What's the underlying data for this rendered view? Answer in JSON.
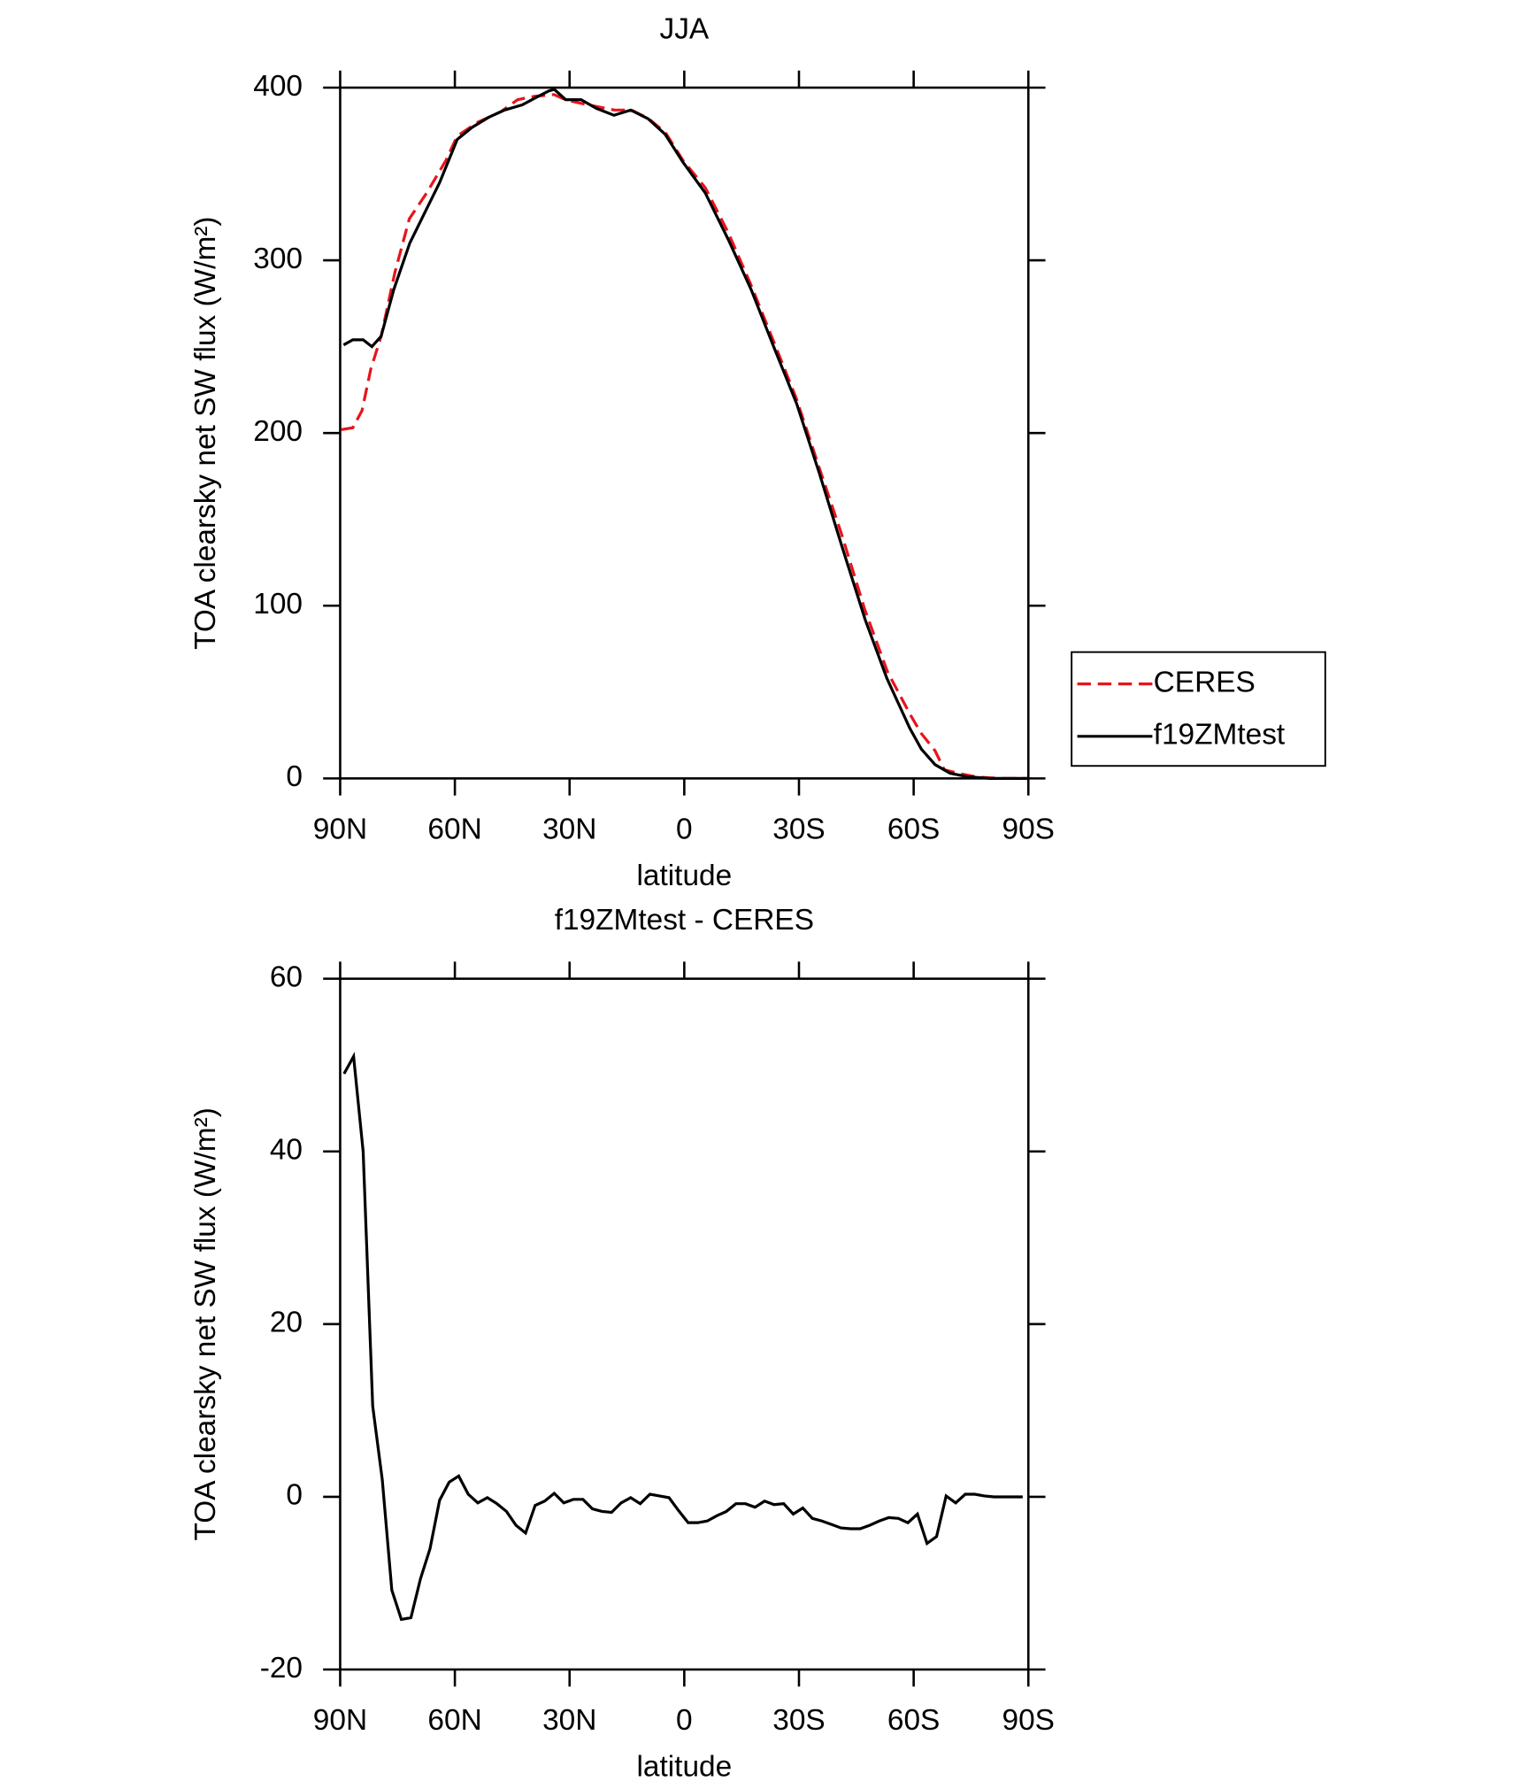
{
  "chart_data": [
    {
      "type": "line",
      "title": "JJA",
      "xlabel": "latitude",
      "ylabel": "TOA clearsky net SW flux (W/m²)",
      "xlim": [
        90,
        -90
      ],
      "ylim": [
        0,
        400
      ],
      "xticks": [
        {
          "value": 90,
          "label": "90N"
        },
        {
          "value": 60,
          "label": "60N"
        },
        {
          "value": 30,
          "label": "30N"
        },
        0,
        {
          "value": -30,
          "label": "30S"
        },
        {
          "value": -60,
          "label": "60S"
        },
        {
          "value": -90,
          "label": "90S"
        }
      ],
      "yticks": [
        0,
        100,
        200,
        300,
        400
      ],
      "legend": "right",
      "series": [
        {
          "name": "CERES",
          "color": "#e8141c",
          "linestyle": "dashed",
          "x": [
            89.7,
            86.7,
            84.3,
            82,
            79.3,
            75.7,
            71.9,
            67.4,
            62.3,
            59.4,
            54,
            48,
            43.6,
            39.1,
            34.1,
            31.1,
            27.2,
            22.8,
            18.3,
            13.8,
            9.3,
            4.9,
            0.4,
            -5.5,
            -11.5,
            -17.4,
            -23.4,
            -29.3,
            -35.3,
            -41.2,
            -47.2,
            -53.1,
            -59.1,
            -62,
            -65.6,
            -68,
            -72.5,
            -76.9,
            -82.9,
            -90
          ],
          "values": [
            202,
            203,
            213,
            237,
            256,
            293,
            324,
            339,
            358,
            372,
            380,
            386,
            393,
            395,
            396,
            393,
            391,
            389,
            387,
            387,
            382,
            374,
            358,
            342,
            316,
            286,
            253,
            220,
            180,
            141,
            98,
            62,
            37,
            26,
            16,
            5,
            2.6,
            0.7,
            0,
            0
          ]
        },
        {
          "name": "f19ZMtest",
          "color": "#000000",
          "linestyle": "solid",
          "x": [
            89.1,
            86.7,
            84,
            81.7,
            79.3,
            76,
            71.8,
            68,
            64,
            59.4,
            55.5,
            51,
            47,
            42.4,
            39,
            35.5,
            34,
            31,
            27,
            23,
            18.4,
            14,
            9.5,
            5,
            0.4,
            -5.5,
            -11.5,
            -17.5,
            -23.4,
            -29.4,
            -35.3,
            -41.3,
            -47.3,
            -53,
            -59,
            -62,
            -65.6,
            -69.5,
            -74,
            -80,
            -90
          ],
          "values": [
            251,
            254,
            254,
            250,
            256,
            283,
            310,
            327,
            345,
            370,
            377,
            383,
            387,
            390,
            394,
            398,
            399,
            393,
            393,
            388,
            384,
            387,
            382,
            373,
            357,
            339,
            312,
            283,
            250,
            217,
            177,
            134,
            92,
            58,
            29,
            17,
            8,
            3,
            1,
            0,
            0
          ]
        }
      ]
    },
    {
      "type": "line",
      "title": "f19ZMtest - CERES",
      "xlabel": "latitude",
      "ylabel": "TOA clearsky net SW flux (W/m²)",
      "xlim": [
        90,
        -90
      ],
      "ylim": [
        -20,
        60
      ],
      "xticks": [
        {
          "value": 90,
          "label": "90N"
        },
        {
          "value": 60,
          "label": "60N"
        },
        {
          "value": 30,
          "label": "30N"
        },
        0,
        {
          "value": -30,
          "label": "30S"
        },
        {
          "value": -60,
          "label": "60S"
        },
        {
          "value": -90,
          "label": "90S"
        }
      ],
      "yticks": [
        -20,
        0,
        20,
        40,
        60
      ],
      "series": [
        {
          "color": "#000000",
          "linestyle": "solid",
          "x": [
            89,
            86.5,
            84,
            81.5,
            79,
            76.5,
            74,
            71.5,
            69,
            66.5,
            64,
            61.5,
            59,
            56.5,
            54,
            51.5,
            49,
            46.5,
            44,
            41.5,
            39,
            36.5,
            34,
            31.5,
            29,
            26.5,
            24,
            21.5,
            19,
            16.5,
            14,
            11.5,
            9,
            6.5,
            4,
            1.5,
            -1,
            -3.5,
            -6,
            -8.5,
            -11,
            -13.5,
            -16,
            -18.5,
            -21,
            -23.5,
            -26,
            -28.5,
            -31,
            -33.5,
            -36,
            -38.5,
            -41,
            -43.5,
            -46,
            -48.5,
            -51,
            -53.5,
            -56,
            -58.5,
            -61,
            -63.5,
            -66,
            -68.5,
            -71,
            -73.5,
            -76,
            -78.5,
            -81,
            -83.5,
            -86,
            -88.5
          ],
          "values": [
            49,
            51,
            40,
            10.5,
            2,
            -10.8,
            -14.2,
            -14,
            -9.5,
            -6,
            -0.4,
            1.7,
            2.4,
            0.3,
            -0.7,
            -0.1,
            -0.8,
            -1.7,
            -3.3,
            -4.2,
            -1,
            -0.5,
            0.4,
            -0.7,
            -0.3,
            -0.3,
            -1.4,
            -1.7,
            -1.8,
            -0.7,
            -0.1,
            -0.8,
            0.3,
            0.1,
            -0.1,
            -1.6,
            -3,
            -3,
            -2.8,
            -2.2,
            -1.7,
            -0.8,
            -0.8,
            -1.2,
            -0.5,
            -0.9,
            -0.8,
            -2,
            -1.3,
            -2.5,
            -2.8,
            -3.2,
            -3.6,
            -3.7,
            -3.7,
            -3.3,
            -2.8,
            -2.4,
            -2.5,
            -3,
            -2,
            -5.4,
            -4.6,
            0.1,
            -0.7,
            0.3,
            0.3,
            0.1,
            0,
            0,
            0,
            0
          ]
        }
      ]
    }
  ]
}
